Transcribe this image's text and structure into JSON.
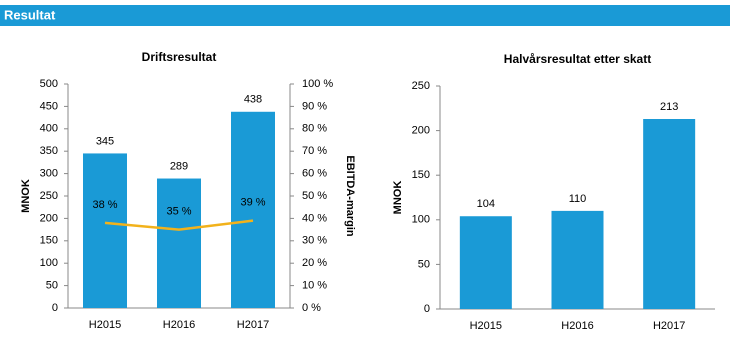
{
  "header": {
    "title": "Resultat"
  },
  "chart_data": [
    {
      "type": "combo",
      "title": "Driftsresultat",
      "ylabel": "MNOK",
      "y2label": "EBITDA-margin",
      "categories": [
        "H2015",
        "H2016",
        "H2017"
      ],
      "series": [
        {
          "type": "bar",
          "color": "#1a9ad6",
          "values": [
            345,
            289,
            438
          ]
        },
        {
          "type": "line",
          "axis": "y2",
          "color": "#f2b21b",
          "values": [
            38,
            35,
            39
          ],
          "value_labels": [
            "38 %",
            "35 %",
            "39 %"
          ]
        }
      ],
      "ylim": [
        0,
        500
      ],
      "yticks": [
        0,
        50,
        100,
        150,
        200,
        250,
        300,
        350,
        400,
        450,
        500
      ],
      "y2lim": [
        0,
        100
      ],
      "y2ticks": [
        {
          "value": 0,
          "label": "0 %"
        },
        {
          "value": 10,
          "label": "10 %"
        },
        {
          "value": 20,
          "label": "20 %"
        },
        {
          "value": 30,
          "label": "30 %"
        },
        {
          "value": 40,
          "label": "40 %"
        },
        {
          "value": 50,
          "label": "50 %"
        },
        {
          "value": 60,
          "label": "60 %"
        },
        {
          "value": 70,
          "label": "70 %"
        },
        {
          "value": 80,
          "label": "80 %"
        },
        {
          "value": 90,
          "label": "90 %"
        },
        {
          "value": 100,
          "label": "100 %"
        }
      ],
      "grid": false
    },
    {
      "type": "bar",
      "title": "Halvårsresultat etter skatt",
      "ylabel": "MNOK",
      "categories": [
        "H2015",
        "H2016",
        "H2017"
      ],
      "series": [
        {
          "type": "bar",
          "color": "#1a9ad6",
          "values": [
            104,
            110,
            213
          ]
        }
      ],
      "ylim": [
        0,
        250
      ],
      "yticks": [
        0,
        50,
        100,
        150,
        200,
        250
      ],
      "grid": false
    }
  ]
}
